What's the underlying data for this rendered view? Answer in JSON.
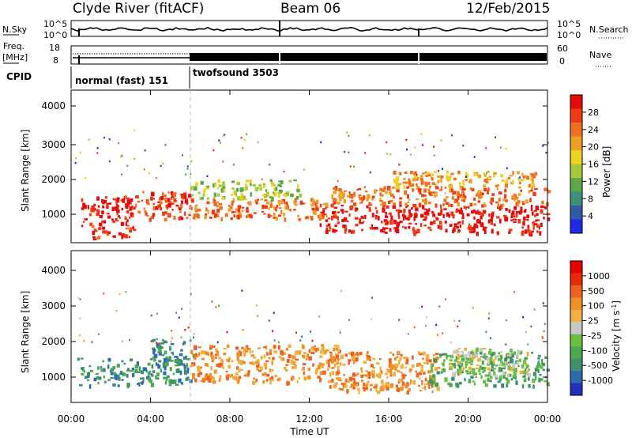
{
  "header": {
    "station": "Clyde River (fitACF)",
    "beam": "Beam 06",
    "date": "12/Feb/2015"
  },
  "noise_panel": {
    "left_label": "N.Sky",
    "right_label": "N.Search",
    "left_ticks": [
      "10^5",
      "10^0"
    ],
    "right_ticks": [
      "10^5",
      "10^0"
    ]
  },
  "freq_panel": {
    "label_line1": "Freq.",
    "label_line2": "[MHz]",
    "left_ticks": [
      "18",
      "8"
    ],
    "right_label": "Nave",
    "right_ticks": [
      "60",
      "0"
    ]
  },
  "cpid": {
    "label": "CPID",
    "segments": [
      {
        "name": "normal (fast) 151",
        "start_hour": 0,
        "end_hour": 6
      },
      {
        "name": "twofsound 3503",
        "start_hour": 6,
        "end_hour": 24
      }
    ]
  },
  "x_axis": {
    "label": "Time UT",
    "ticks": [
      "00:00",
      "04:00",
      "08:00",
      "12:00",
      "16:00",
      "20:00",
      "00:00"
    ]
  },
  "power_panel": {
    "ylabel": "Slant Range [km]",
    "yticks": [
      "4000",
      "3000",
      "2000",
      "1000"
    ],
    "colorbar_label": "Power [dB]",
    "colorbar_ticks": [
      "28",
      "24",
      "20",
      "16",
      "12",
      "8",
      "4"
    ],
    "colors": [
      "#1e28e6",
      "#2e5aa8",
      "#3f8f7a",
      "#5aa84a",
      "#a6c83a",
      "#f0d020",
      "#f0a020",
      "#f07020",
      "#f03a14",
      "#e60a0a"
    ]
  },
  "velocity_panel": {
    "ylabel": "Slant Range [km]",
    "yticks": [
      "4000",
      "3000",
      "2000",
      "1000"
    ],
    "colorbar_label": "Velocity [m s-1]",
    "colorbar_ticks": [
      "1000",
      "500",
      "100",
      "25",
      "-25",
      "-100",
      "-500",
      "-1000"
    ],
    "colors": [
      "#2030c0",
      "#2a6cb0",
      "#3e8f70",
      "#4aa850",
      "#6cc040",
      "#c8c8c8",
      "#f0b040",
      "#f09020",
      "#f06020",
      "#e62a0a",
      "#e60000"
    ]
  },
  "chart_data": {
    "type": "heatmap",
    "x_range_hours": [
      0,
      24
    ],
    "y_range_km": [
      180,
      4650
    ],
    "power_bands": [
      {
        "t0": 0.5,
        "t1": 3.0,
        "r0": 700,
        "r1": 1550,
        "level": 9
      },
      {
        "t0": 1.0,
        "t1": 3.2,
        "r0": 300,
        "r1": 700,
        "level": 8
      },
      {
        "t0": 2.6,
        "t1": 6.0,
        "r0": 900,
        "r1": 1700,
        "level": 8
      },
      {
        "t0": 6.0,
        "t1": 13.5,
        "r0": 900,
        "r1": 1500,
        "level": 7
      },
      {
        "t0": 6.0,
        "t1": 11.5,
        "r0": 1500,
        "r1": 2050,
        "level": 4
      },
      {
        "t0": 12.5,
        "t1": 24.0,
        "r0": 500,
        "r1": 1300,
        "level": 9
      },
      {
        "t0": 13.0,
        "t1": 24.0,
        "r0": 1300,
        "r1": 1850,
        "level": 7
      },
      {
        "t0": 16.0,
        "t1": 23.5,
        "r0": 1850,
        "r1": 2300,
        "level": 6
      }
    ],
    "velocity_bands": [
      {
        "t0": 0.3,
        "t1": 6.0,
        "r0": 700,
        "r1": 1500,
        "level": 2
      },
      {
        "t0": 4.0,
        "t1": 6.2,
        "r0": 1400,
        "r1": 2050,
        "level": 2
      },
      {
        "t0": 6.0,
        "t1": 13.5,
        "r0": 800,
        "r1": 1900,
        "level": 7
      },
      {
        "t0": 13.0,
        "t1": 18.5,
        "r0": 500,
        "r1": 1700,
        "level": 7
      },
      {
        "t0": 18.0,
        "t1": 24.0,
        "r0": 700,
        "r1": 1700,
        "level": 3
      },
      {
        "t0": 19.0,
        "t1": 23.0,
        "r0": 1000,
        "r1": 1800,
        "level": 5
      }
    ]
  }
}
